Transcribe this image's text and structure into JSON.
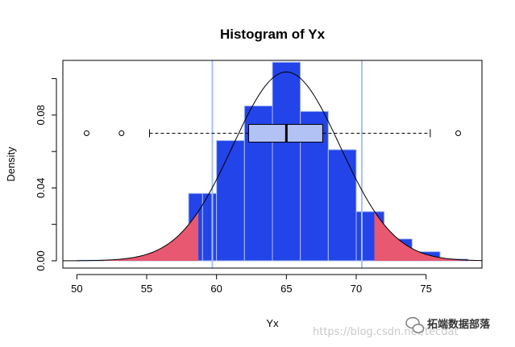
{
  "chart_data": {
    "type": "histogram",
    "title": "Histogram of Yx",
    "xlabel": "Yx",
    "ylabel": "Density",
    "xlim": [
      49,
      79
    ],
    "ylim": [
      -0.004,
      0.11
    ],
    "x_ticks": [
      50,
      55,
      60,
      65,
      70,
      75
    ],
    "y_ticks": [
      0.0,
      0.04,
      0.08
    ],
    "x_tick_labels": [
      "50",
      "55",
      "60",
      "65",
      "70",
      "75"
    ],
    "y_tick_labels": [
      "0.00",
      "0.04",
      "0.08"
    ],
    "bins": [
      {
        "x0": 49,
        "x1": 50,
        "density": 0.0
      },
      {
        "x0": 50,
        "x1": 51,
        "density": 0.0003
      },
      {
        "x0": 51,
        "x1": 52,
        "density": 0.0003
      },
      {
        "x0": 52,
        "x1": 53,
        "density": 0.0
      },
      {
        "x0": 53,
        "x1": 54,
        "density": 0.0004
      },
      {
        "x0": 54,
        "x1": 55,
        "density": 0.001
      },
      {
        "x0": 55,
        "x1": 56,
        "density": 0.003
      },
      {
        "x0": 56,
        "x1": 57,
        "density": 0.005
      },
      {
        "x0": 57,
        "x1": 58,
        "density": 0.008
      },
      {
        "x0": 58,
        "x1": 59,
        "density": 0.037
      },
      {
        "x0": 59,
        "x1": 60,
        "density": 0.037
      },
      {
        "x0": 60,
        "x1": 62,
        "density": 0.066
      },
      {
        "x0": 62,
        "x1": 64,
        "density": 0.085
      },
      {
        "x0": 64,
        "x1": 66,
        "density": 0.109
      },
      {
        "x0": 66,
        "x1": 68,
        "density": 0.082
      },
      {
        "x0": 68,
        "x1": 70,
        "density": 0.061
      },
      {
        "x0": 70,
        "x1": 72,
        "density": 0.027
      },
      {
        "x0": 72,
        "x1": 74,
        "density": 0.012
      },
      {
        "x0": 74,
        "x1": 76,
        "density": 0.005
      },
      {
        "x0": 76,
        "x1": 78,
        "density": 0.001
      }
    ],
    "density_curve": {
      "mean": 65.0,
      "sd": 3.85
    },
    "tail_cutoffs": [
      58.7,
      71.3
    ],
    "vlines": [
      59.7,
      70.4
    ],
    "boxplot": {
      "y": 0.07,
      "whisker_low": 55.2,
      "q1": 62.3,
      "median": 65.0,
      "q3": 67.6,
      "whisker_high": 75.3,
      "outliers": [
        50.7,
        53.2,
        77.3
      ]
    },
    "colors": {
      "bars": "#2344e8",
      "bar_border": "#a8bdf0",
      "tails": "#e85870",
      "vlines": "#a8c0f0",
      "box_fill": "#b3c2f5"
    }
  },
  "watermark": {
    "url_text": "https://blog.csdn.net/tecdat",
    "brand_text": "拓端数据部落"
  }
}
